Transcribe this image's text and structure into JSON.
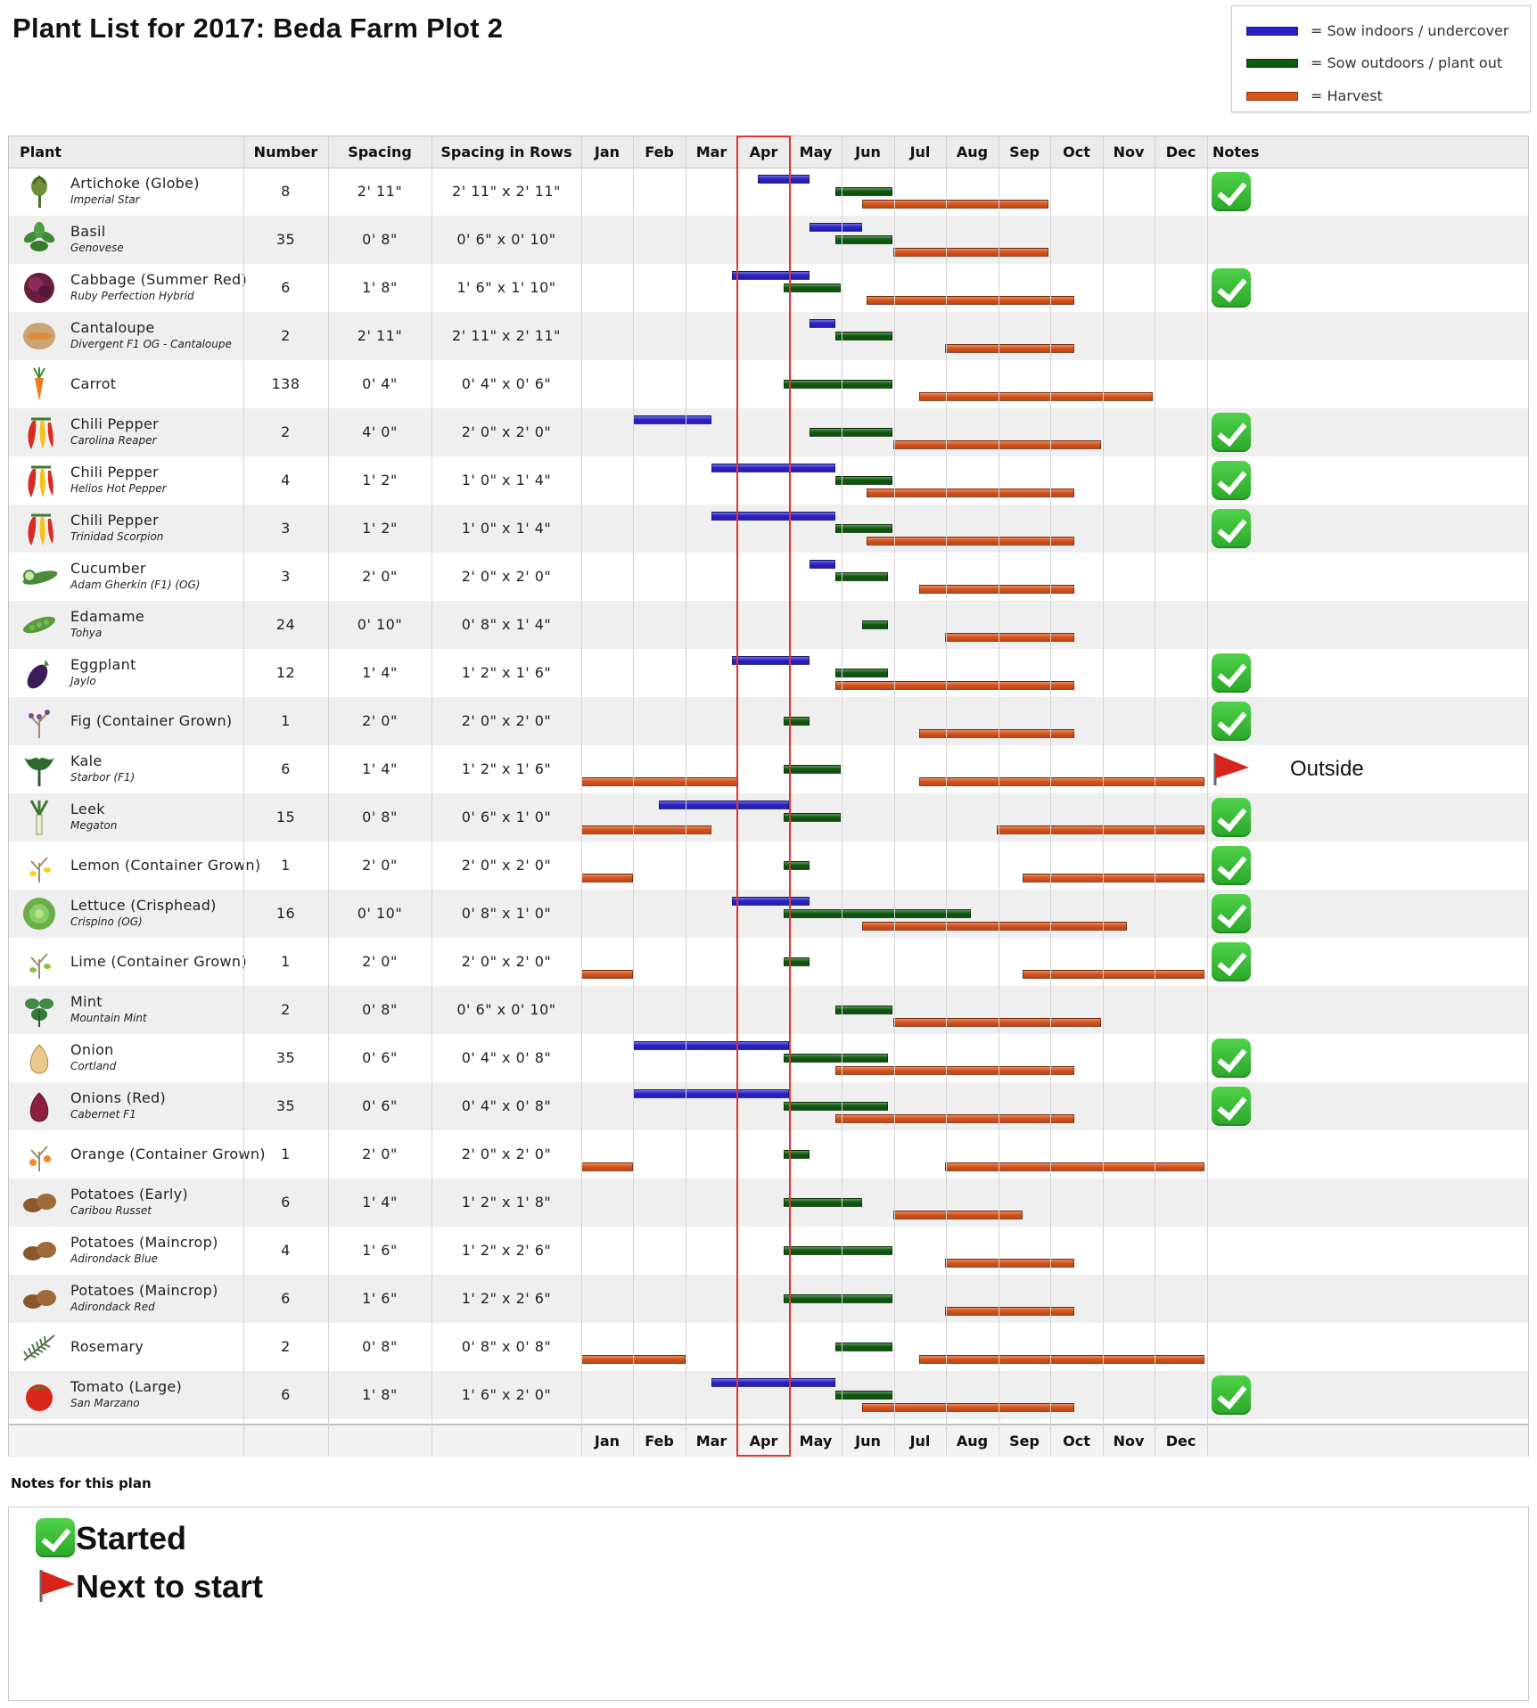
{
  "title": "Plant List for 2017: Beda Farm Plot 2",
  "legend": [
    {
      "label": "= Sow indoors / undercover",
      "color": "#2a22c8",
      "key": "indoor"
    },
    {
      "label": "= Sow outdoors / plant out",
      "color": "#0f5a0f",
      "key": "outdoor"
    },
    {
      "label": "= Harvest",
      "color": "#d9531a",
      "key": "harvest"
    }
  ],
  "columns": {
    "plant": "Plant",
    "number": "Number",
    "spacing": "Spacing",
    "spacing_rows": "Spacing in Rows",
    "notes": "Notes"
  },
  "months": [
    "Jan",
    "Feb",
    "Mar",
    "Apr",
    "May",
    "Jun",
    "Jul",
    "Aug",
    "Sep",
    "Oct",
    "Nov",
    "Dec"
  ],
  "chart_data": {
    "type": "gantt",
    "x_axis": "month",
    "highlighted_month": "Apr",
    "rows": [
      {
        "name": "Artichoke (Globe)",
        "variety": "Imperial Star",
        "icon": "artichoke-icon",
        "number": "8",
        "spacing": "2' 11\"",
        "spacing_rows": "2' 11\" x 2' 11\"",
        "note": "check",
        "bars": [
          {
            "type": "indoor",
            "start": 3.4,
            "end": 4.4
          },
          {
            "type": "outdoor",
            "start": 4.9,
            "end": 6.0
          },
          {
            "type": "harvest",
            "start": 5.4,
            "end": 9.0
          }
        ]
      },
      {
        "name": "Basil",
        "variety": "Genovese",
        "icon": "basil-icon",
        "number": "35",
        "spacing": "0' 8\"",
        "spacing_rows": "0' 6\" x 0' 10\"",
        "note": "",
        "bars": [
          {
            "type": "indoor",
            "start": 4.4,
            "end": 5.4
          },
          {
            "type": "outdoor",
            "start": 4.9,
            "end": 6.0
          },
          {
            "type": "harvest",
            "start": 6.0,
            "end": 9.0
          }
        ]
      },
      {
        "name": "Cabbage (Summer Red)",
        "variety": "Ruby Perfection Hybrid",
        "icon": "cabbage-icon",
        "number": "6",
        "spacing": "1' 8\"",
        "spacing_rows": "1' 6\" x 1' 10\"",
        "note": "check",
        "bars": [
          {
            "type": "indoor",
            "start": 2.9,
            "end": 4.4
          },
          {
            "type": "outdoor",
            "start": 3.9,
            "end": 5.0
          },
          {
            "type": "harvest",
            "start": 5.5,
            "end": 9.5
          }
        ]
      },
      {
        "name": "Cantaloupe",
        "variety": "Divergent F1 OG - Cantaloupe",
        "icon": "cantaloupe-icon",
        "number": "2",
        "spacing": "2' 11\"",
        "spacing_rows": "2' 11\" x 2' 11\"",
        "note": "",
        "bars": [
          {
            "type": "indoor",
            "start": 4.4,
            "end": 4.9
          },
          {
            "type": "outdoor",
            "start": 4.9,
            "end": 6.0
          },
          {
            "type": "harvest",
            "start": 7.0,
            "end": 9.5
          }
        ]
      },
      {
        "name": "Carrot",
        "variety": "",
        "icon": "carrot-icon",
        "number": "138",
        "spacing": "0' 4\"",
        "spacing_rows": "0' 4\" x 0' 6\"",
        "note": "",
        "bars": [
          {
            "type": "outdoor",
            "start": 3.9,
            "end": 6.0
          },
          {
            "type": "harvest",
            "start": 6.5,
            "end": 11.0
          }
        ]
      },
      {
        "name": "Chili Pepper",
        "variety": "Carolina Reaper",
        "icon": "chili-pepper-icon",
        "number": "2",
        "spacing": "4' 0\"",
        "spacing_rows": "2' 0\" x 2' 0\"",
        "note": "check",
        "bars": [
          {
            "type": "indoor",
            "start": 1.0,
            "end": 2.5
          },
          {
            "type": "outdoor",
            "start": 4.4,
            "end": 6.0
          },
          {
            "type": "harvest",
            "start": 6.0,
            "end": 10.0
          }
        ]
      },
      {
        "name": "Chili Pepper",
        "variety": "Helios Hot Pepper",
        "icon": "chili-pepper-icon",
        "number": "4",
        "spacing": "1' 2\"",
        "spacing_rows": "1' 0\" x 1' 4\"",
        "note": "check",
        "bars": [
          {
            "type": "indoor",
            "start": 2.5,
            "end": 4.9
          },
          {
            "type": "outdoor",
            "start": 4.9,
            "end": 6.0
          },
          {
            "type": "harvest",
            "start": 5.5,
            "end": 9.5
          }
        ]
      },
      {
        "name": "Chili Pepper",
        "variety": "Trinidad Scorpion",
        "icon": "chili-pepper-icon",
        "number": "3",
        "spacing": "1' 2\"",
        "spacing_rows": "1' 0\" x 1' 4\"",
        "note": "check",
        "bars": [
          {
            "type": "indoor",
            "start": 2.5,
            "end": 4.9
          },
          {
            "type": "outdoor",
            "start": 4.9,
            "end": 6.0
          },
          {
            "type": "harvest",
            "start": 5.5,
            "end": 9.5
          }
        ]
      },
      {
        "name": "Cucumber",
        "variety": "Adam Gherkin (F1) (OG)",
        "icon": "cucumber-icon",
        "number": "3",
        "spacing": "2' 0\"",
        "spacing_rows": "2' 0\" x 2' 0\"",
        "note": "",
        "bars": [
          {
            "type": "indoor",
            "start": 4.4,
            "end": 4.9
          },
          {
            "type": "outdoor",
            "start": 4.9,
            "end": 5.9
          },
          {
            "type": "harvest",
            "start": 6.5,
            "end": 9.5
          }
        ]
      },
      {
        "name": "Edamame",
        "variety": "Tohya",
        "icon": "edamame-icon",
        "number": "24",
        "spacing": "0' 10\"",
        "spacing_rows": "0' 8\" x 1' 4\"",
        "note": "",
        "bars": [
          {
            "type": "outdoor",
            "start": 5.4,
            "end": 5.9
          },
          {
            "type": "harvest",
            "start": 7.0,
            "end": 9.5
          }
        ]
      },
      {
        "name": "Eggplant",
        "variety": "Jaylo",
        "icon": "eggplant-icon",
        "number": "12",
        "spacing": "1' 4\"",
        "spacing_rows": "1' 2\" x 1' 6\"",
        "note": "check",
        "bars": [
          {
            "type": "indoor",
            "start": 2.9,
            "end": 4.4
          },
          {
            "type": "outdoor",
            "start": 4.9,
            "end": 5.9
          },
          {
            "type": "harvest",
            "start": 4.9,
            "end": 9.5
          }
        ]
      },
      {
        "name": "Fig (Container Grown)",
        "variety": "",
        "icon": "fig-tree-icon",
        "number": "1",
        "spacing": "2' 0\"",
        "spacing_rows": "2' 0\" x 2' 0\"",
        "note": "check",
        "bars": [
          {
            "type": "outdoor",
            "start": 3.9,
            "end": 4.4
          },
          {
            "type": "harvest",
            "start": 6.5,
            "end": 9.5
          }
        ]
      },
      {
        "name": "Kale",
        "variety": "Starbor (F1)",
        "icon": "kale-icon",
        "number": "6",
        "spacing": "1' 4\"",
        "spacing_rows": "1' 2\" x 1' 6\"",
        "note": "flag",
        "note_text": "Outside",
        "bars": [
          {
            "type": "outdoor",
            "start": 3.9,
            "end": 5.0
          },
          {
            "type": "harvest",
            "start": 0.0,
            "end": 3.0
          },
          {
            "type": "harvest",
            "start": 6.5,
            "end": 12.0
          }
        ]
      },
      {
        "name": "Leek",
        "variety": "Megaton",
        "icon": "leek-icon",
        "number": "15",
        "spacing": "0' 8\"",
        "spacing_rows": "0' 6\" x 1' 0\"",
        "note": "check",
        "bars": [
          {
            "type": "indoor",
            "start": 1.5,
            "end": 4.0
          },
          {
            "type": "outdoor",
            "start": 3.9,
            "end": 5.0
          },
          {
            "type": "harvest",
            "start": 0.0,
            "end": 2.5
          },
          {
            "type": "harvest",
            "start": 8.0,
            "end": 12.0
          }
        ]
      },
      {
        "name": "Lemon (Container Grown)",
        "variety": "",
        "icon": "lemon-tree-icon",
        "number": "1",
        "spacing": "2' 0\"",
        "spacing_rows": "2' 0\" x 2' 0\"",
        "note": "check",
        "bars": [
          {
            "type": "outdoor",
            "start": 3.9,
            "end": 4.4
          },
          {
            "type": "harvest",
            "start": 0.0,
            "end": 1.0
          },
          {
            "type": "harvest",
            "start": 8.5,
            "end": 12.0
          }
        ]
      },
      {
        "name": "Lettuce (Crisphead)",
        "variety": "Crispino (OG)",
        "icon": "lettuce-icon",
        "number": "16",
        "spacing": "0' 10\"",
        "spacing_rows": "0' 8\" x 1' 0\"",
        "note": "check",
        "bars": [
          {
            "type": "indoor",
            "start": 2.9,
            "end": 4.4
          },
          {
            "type": "outdoor",
            "start": 3.9,
            "end": 7.5
          },
          {
            "type": "harvest",
            "start": 5.4,
            "end": 10.5
          }
        ]
      },
      {
        "name": "Lime (Container Grown)",
        "variety": "",
        "icon": "lime-tree-icon",
        "number": "1",
        "spacing": "2' 0\"",
        "spacing_rows": "2' 0\" x 2' 0\"",
        "note": "check",
        "bars": [
          {
            "type": "outdoor",
            "start": 3.9,
            "end": 4.4
          },
          {
            "type": "harvest",
            "start": 0.0,
            "end": 1.0
          },
          {
            "type": "harvest",
            "start": 8.5,
            "end": 12.0
          }
        ]
      },
      {
        "name": "Mint",
        "variety": "Mountain Mint",
        "icon": "mint-icon",
        "number": "2",
        "spacing": "0' 8\"",
        "spacing_rows": "0' 6\" x 0' 10\"",
        "note": "",
        "bars": [
          {
            "type": "outdoor",
            "start": 4.9,
            "end": 6.0
          },
          {
            "type": "harvest",
            "start": 6.0,
            "end": 10.0
          }
        ]
      },
      {
        "name": "Onion",
        "variety": "Cortland",
        "icon": "onion-icon",
        "number": "35",
        "spacing": "0' 6\"",
        "spacing_rows": "0' 4\" x 0' 8\"",
        "note": "check",
        "bars": [
          {
            "type": "indoor",
            "start": 1.0,
            "end": 4.0
          },
          {
            "type": "outdoor",
            "start": 3.9,
            "end": 5.9
          },
          {
            "type": "harvest",
            "start": 4.9,
            "end": 9.5
          }
        ]
      },
      {
        "name": "Onions (Red)",
        "variety": "Cabernet F1",
        "icon": "red-onion-icon",
        "number": "35",
        "spacing": "0' 6\"",
        "spacing_rows": "0' 4\" x 0' 8\"",
        "note": "check",
        "bars": [
          {
            "type": "indoor",
            "start": 1.0,
            "end": 4.0
          },
          {
            "type": "outdoor",
            "start": 3.9,
            "end": 5.9
          },
          {
            "type": "harvest",
            "start": 4.9,
            "end": 9.5
          }
        ]
      },
      {
        "name": "Orange (Container Grown)",
        "variety": "",
        "icon": "orange-tree-icon",
        "number": "1",
        "spacing": "2' 0\"",
        "spacing_rows": "2' 0\" x 2' 0\"",
        "note": "",
        "bars": [
          {
            "type": "outdoor",
            "start": 3.9,
            "end": 4.4
          },
          {
            "type": "harvest",
            "start": 0.0,
            "end": 1.0
          },
          {
            "type": "harvest",
            "start": 7.0,
            "end": 12.0
          }
        ]
      },
      {
        "name": "Potatoes (Early)",
        "variety": "Caribou Russet",
        "icon": "potato-icon",
        "number": "6",
        "spacing": "1' 4\"",
        "spacing_rows": "1' 2\" x 1' 8\"",
        "note": "",
        "bars": [
          {
            "type": "outdoor",
            "start": 3.9,
            "end": 5.4
          },
          {
            "type": "harvest",
            "start": 6.0,
            "end": 8.5
          }
        ]
      },
      {
        "name": "Potatoes (Maincrop)",
        "variety": "Adirondack Blue",
        "icon": "potato-icon",
        "number": "4",
        "spacing": "1' 6\"",
        "spacing_rows": "1' 2\" x 2' 6\"",
        "note": "",
        "bars": [
          {
            "type": "outdoor",
            "start": 3.9,
            "end": 6.0
          },
          {
            "type": "harvest",
            "start": 7.0,
            "end": 9.5
          }
        ]
      },
      {
        "name": "Potatoes (Maincrop)",
        "variety": "Adirondack Red",
        "icon": "potato-icon",
        "number": "6",
        "spacing": "1' 6\"",
        "spacing_rows": "1' 2\" x 2' 6\"",
        "note": "",
        "bars": [
          {
            "type": "outdoor",
            "start": 3.9,
            "end": 6.0
          },
          {
            "type": "harvest",
            "start": 7.0,
            "end": 9.5
          }
        ]
      },
      {
        "name": "Rosemary",
        "variety": "",
        "icon": "rosemary-icon",
        "number": "2",
        "spacing": "0' 8\"",
        "spacing_rows": "0' 8\" x 0' 8\"",
        "note": "",
        "bars": [
          {
            "type": "outdoor",
            "start": 4.9,
            "end": 6.0
          },
          {
            "type": "harvest",
            "start": 0.0,
            "end": 2.0
          },
          {
            "type": "harvest",
            "start": 6.5,
            "end": 12.0
          }
        ]
      },
      {
        "name": "Tomato (Large)",
        "variety": "San Marzano",
        "icon": "tomato-icon",
        "number": "6",
        "spacing": "1' 8\"",
        "spacing_rows": "1' 6\" x 2' 0\"",
        "note": "check",
        "bars": [
          {
            "type": "indoor",
            "start": 2.5,
            "end": 4.9
          },
          {
            "type": "outdoor",
            "start": 4.9,
            "end": 6.0
          },
          {
            "type": "harvest",
            "start": 5.4,
            "end": 9.5
          }
        ]
      }
    ]
  },
  "plan_notes": {
    "title": "Notes for this plan",
    "started_label": "Started",
    "next_label": "Next to start"
  }
}
